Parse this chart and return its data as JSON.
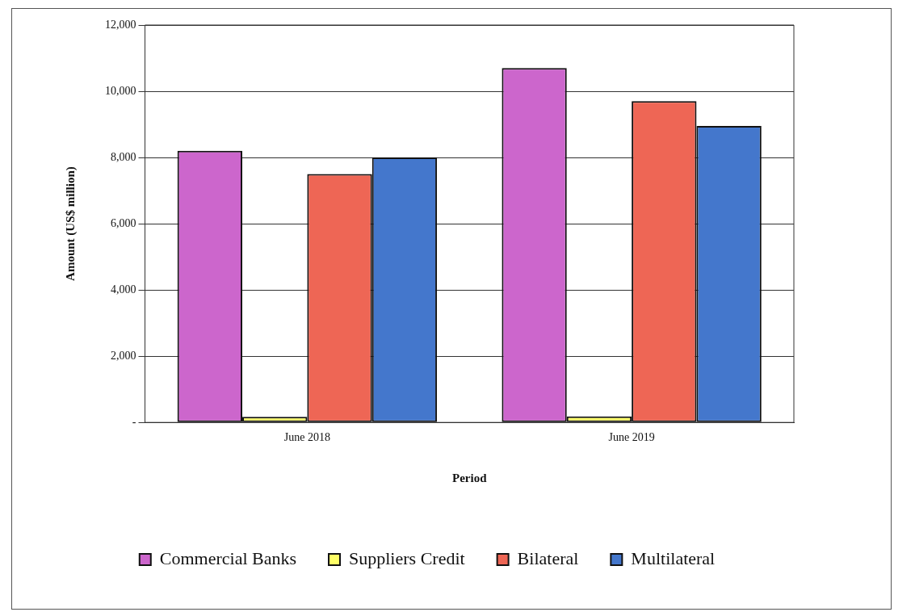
{
  "chart_data": {
    "type": "bar",
    "xlabel": "Period",
    "ylabel": "Amount (US$ million)",
    "categories": [
      "June 2018",
      "June 2019"
    ],
    "series": [
      {
        "name": "Commercial Banks",
        "color": "#cc66cc",
        "values": [
          8200,
          10700
        ]
      },
      {
        "name": "Suppliers Credit",
        "color": "#ffff66",
        "values": [
          170,
          180
        ]
      },
      {
        "name": "Bilateral",
        "color": "#ee6655",
        "values": [
          7500,
          9700
        ]
      },
      {
        "name": "Multilateral",
        "color": "#4477cc",
        "values": [
          8000,
          8950
        ]
      }
    ],
    "ylim": [
      0,
      12000
    ],
    "yticks": [
      {
        "value": 0,
        "label": "-"
      },
      {
        "value": 2000,
        "label": "2,000"
      },
      {
        "value": 4000,
        "label": "4,000"
      },
      {
        "value": 6000,
        "label": "6,000"
      },
      {
        "value": 8000,
        "label": "8,000"
      },
      {
        "value": 10000,
        "label": "10,000"
      },
      {
        "value": 12000,
        "label": "12,000"
      }
    ],
    "grid": "y",
    "legend": "bottom"
  }
}
